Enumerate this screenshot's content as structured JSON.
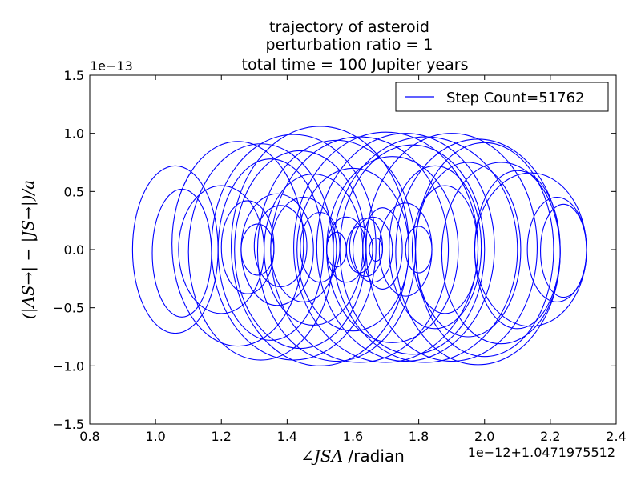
{
  "chart_data": {
    "type": "line",
    "title_lines": [
      "trajectory of asteroid",
      "perturbation ratio = 1",
      "total time = 100 Jupiter years"
    ],
    "xlabel_math": "∠JSA",
    "xlabel_unit": " /radian",
    "ylabel": "(|AS→| − |JS→|)/a",
    "x_offset_text": "1e−12+1.0471975512",
    "y_offset_text": "1e−13",
    "xlim": [
      0.8,
      2.4
    ],
    "ylim": [
      -1.5,
      1.5
    ],
    "x_ticks": [
      "0.8",
      "1.0",
      "1.2",
      "1.4",
      "1.6",
      "1.8",
      "2.0",
      "2.2",
      "2.4"
    ],
    "y_ticks": [
      "1.5",
      "1.0",
      "0.5",
      "0.0",
      "−0.5",
      "−1.0",
      "−1.5"
    ],
    "series": [
      {
        "name": "Step Count=51762",
        "color": "#0000ff",
        "description": "many closed loops (approx. ellipses) in the phase plane",
        "loops": [
          {
            "cx": 1.06,
            "cy": 0.0,
            "rx": 0.13,
            "ry": 0.72
          },
          {
            "cx": 1.08,
            "cy": -0.03,
            "rx": 0.09,
            "ry": 0.55
          },
          {
            "cx": 1.25,
            "cy": 0.05,
            "rx": 0.2,
            "ry": 0.88
          },
          {
            "cx": 1.32,
            "cy": -0.02,
            "rx": 0.22,
            "ry": 0.93
          },
          {
            "cx": 1.42,
            "cy": 0.02,
            "rx": 0.25,
            "ry": 0.97
          },
          {
            "cx": 1.5,
            "cy": 0.03,
            "rx": 0.27,
            "ry": 1.03
          },
          {
            "cx": 1.55,
            "cy": -0.01,
            "rx": 0.24,
            "ry": 0.95
          },
          {
            "cx": 1.62,
            "cy": 0.0,
            "rx": 0.27,
            "ry": 0.97
          },
          {
            "cx": 1.7,
            "cy": 0.02,
            "rx": 0.28,
            "ry": 0.99
          },
          {
            "cx": 1.76,
            "cy": 0.02,
            "rx": 0.27,
            "ry": 0.98
          },
          {
            "cx": 1.82,
            "cy": 0.0,
            "rx": 0.28,
            "ry": 0.97
          },
          {
            "cx": 1.9,
            "cy": 0.02,
            "rx": 0.26,
            "ry": 0.98
          },
          {
            "cx": 1.98,
            "cy": -0.02,
            "rx": 0.25,
            "ry": 0.97
          },
          {
            "cx": 2.05,
            "cy": -0.03,
            "rx": 0.18,
            "ry": 0.78
          },
          {
            "cx": 2.1,
            "cy": 0.0,
            "rx": 0.13,
            "ry": 0.68
          },
          {
            "cx": 2.22,
            "cy": 0.0,
            "rx": 0.09,
            "ry": 0.45
          },
          {
            "cx": 2.24,
            "cy": -0.01,
            "rx": 0.07,
            "ry": 0.4
          },
          {
            "cx": 1.2,
            "cy": 0.0,
            "rx": 0.13,
            "ry": 0.55
          },
          {
            "cx": 1.28,
            "cy": 0.02,
            "rx": 0.08,
            "ry": 0.4
          },
          {
            "cx": 1.31,
            "cy": 0.0,
            "rx": 0.05,
            "ry": 0.22
          },
          {
            "cx": 1.37,
            "cy": 0.0,
            "rx": 0.11,
            "ry": 0.48
          },
          {
            "cx": 1.38,
            "cy": 0.03,
            "rx": 0.08,
            "ry": 0.35
          },
          {
            "cx": 1.45,
            "cy": 0.0,
            "rx": 0.1,
            "ry": 0.45
          },
          {
            "cx": 1.5,
            "cy": 0.02,
            "rx": 0.06,
            "ry": 0.3
          },
          {
            "cx": 1.55,
            "cy": 0.0,
            "rx": 0.03,
            "ry": 0.15
          },
          {
            "cx": 1.58,
            "cy": 0.0,
            "rx": 0.06,
            "ry": 0.28
          },
          {
            "cx": 1.62,
            "cy": 0.0,
            "rx": 0.04,
            "ry": 0.2
          },
          {
            "cx": 1.64,
            "cy": 0.02,
            "rx": 0.05,
            "ry": 0.25
          },
          {
            "cx": 1.66,
            "cy": 0.0,
            "rx": 0.06,
            "ry": 0.28
          },
          {
            "cx": 1.67,
            "cy": 0.0,
            "rx": 0.02,
            "ry": 0.1
          },
          {
            "cx": 1.69,
            "cy": 0.01,
            "rx": 0.06,
            "ry": 0.35
          },
          {
            "cx": 1.76,
            "cy": 0.0,
            "rx": 0.08,
            "ry": 0.4
          },
          {
            "cx": 1.8,
            "cy": 0.0,
            "rx": 0.04,
            "ry": 0.2
          },
          {
            "cx": 1.88,
            "cy": 0.0,
            "rx": 0.1,
            "ry": 0.55
          },
          {
            "cx": 1.85,
            "cy": 0.02,
            "rx": 0.14,
            "ry": 0.7
          },
          {
            "cx": 1.72,
            "cy": 0.0,
            "rx": 0.2,
            "ry": 0.8
          },
          {
            "cx": 1.6,
            "cy": 0.0,
            "rx": 0.17,
            "ry": 0.7
          },
          {
            "cx": 1.48,
            "cy": 0.0,
            "rx": 0.15,
            "ry": 0.65
          },
          {
            "cx": 2.0,
            "cy": 0.0,
            "rx": 0.21,
            "ry": 0.92
          },
          {
            "cx": 1.95,
            "cy": 0.0,
            "rx": 0.16,
            "ry": 0.75
          },
          {
            "cx": 2.14,
            "cy": 0.0,
            "rx": 0.17,
            "ry": 0.66
          },
          {
            "cx": 1.35,
            "cy": 0.0,
            "rx": 0.16,
            "ry": 0.78
          },
          {
            "cx": 1.44,
            "cy": 0.0,
            "rx": 0.2,
            "ry": 0.85
          },
          {
            "cx": 1.78,
            "cy": 0.0,
            "rx": 0.22,
            "ry": 0.9
          }
        ]
      }
    ],
    "legend_position": "upper right",
    "grid": false
  }
}
